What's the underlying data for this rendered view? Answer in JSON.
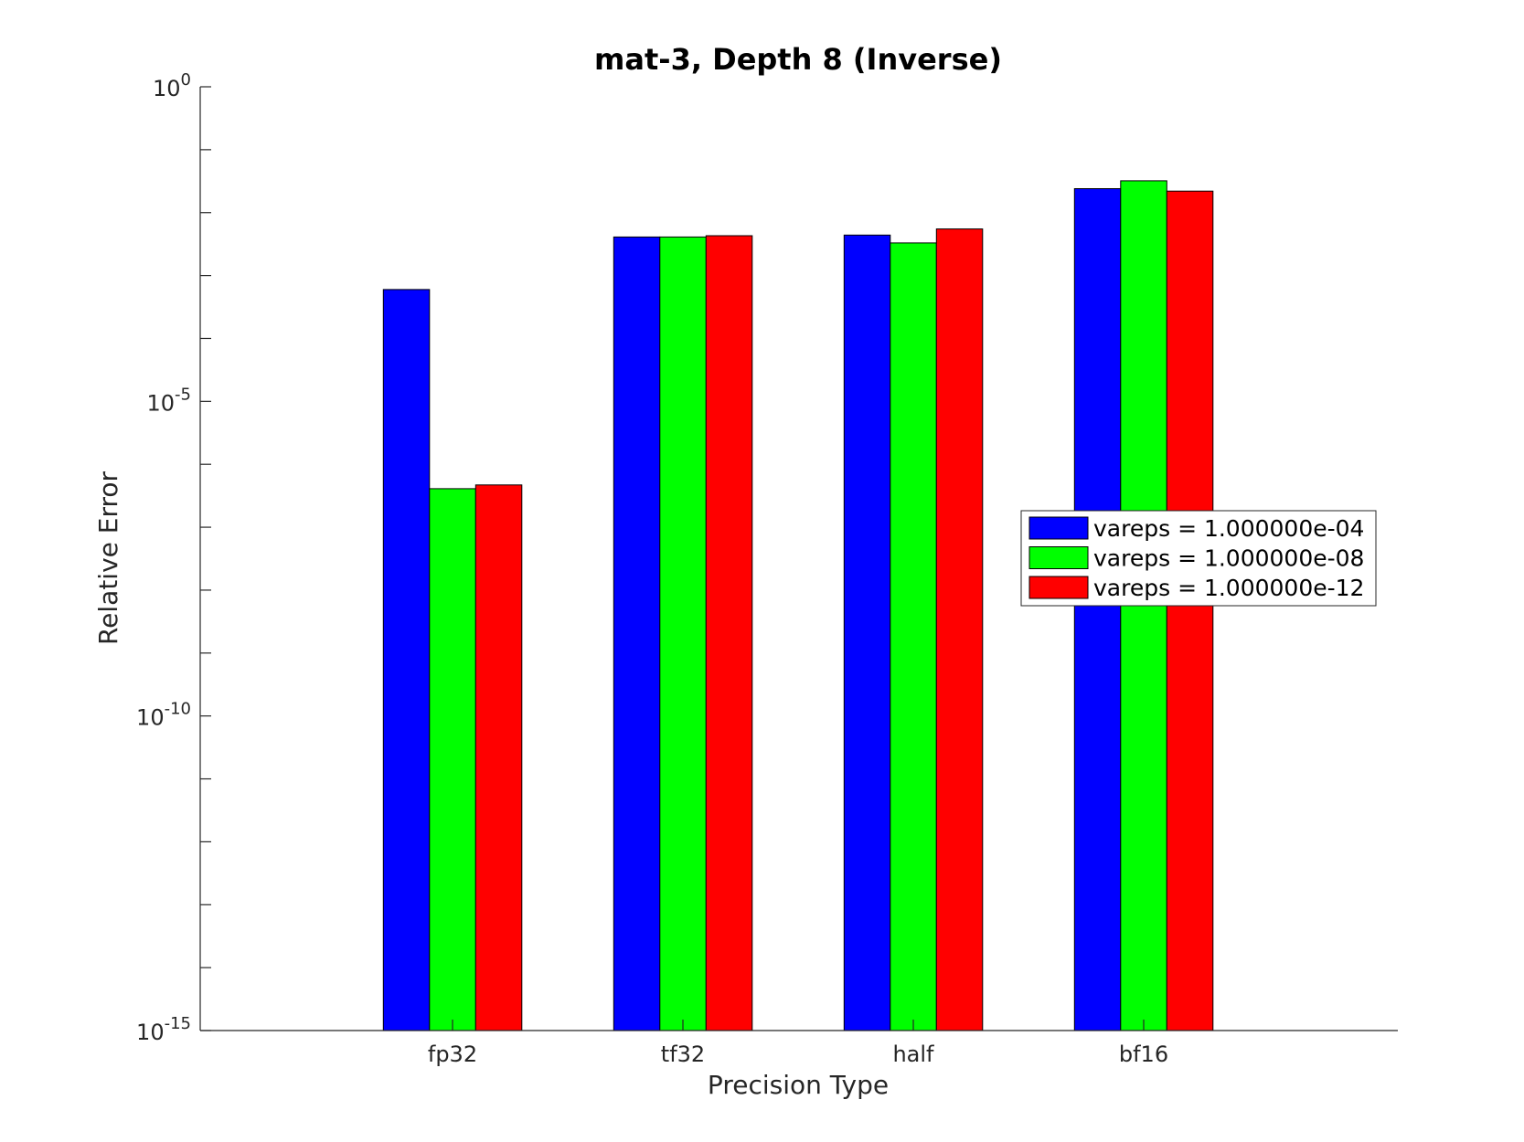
{
  "chart_data": {
    "type": "bar",
    "title": "mat-3, Depth 8 (Inverse)",
    "xlabel": "Precision Type",
    "ylabel": "Relative Error",
    "categories": [
      "fp32",
      "tf32",
      "half",
      "bf16"
    ],
    "y_scale": "log",
    "ylim": [
      1e-15,
      1
    ],
    "y_ticks": [
      {
        "base": "10",
        "exp": "0"
      },
      {
        "base": "10",
        "exp": "-5"
      },
      {
        "base": "10",
        "exp": "-10"
      },
      {
        "base": "10",
        "exp": "-15"
      }
    ],
    "grid": false,
    "legend_position": "right",
    "series": [
      {
        "name": "vareps = 1.000000e-04",
        "color": "#0000ff",
        "values": [
          0.0006,
          0.0041,
          0.0044,
          0.024
        ]
      },
      {
        "name": "vareps = 1.000000e-08",
        "color": "#00ff00",
        "values": [
          4.1e-07,
          0.0041,
          0.0033,
          0.032
        ]
      },
      {
        "name": "vareps = 1.000000e-12",
        "color": "#ff0000",
        "values": [
          4.7e-07,
          0.0043,
          0.0055,
          0.022
        ]
      }
    ]
  }
}
